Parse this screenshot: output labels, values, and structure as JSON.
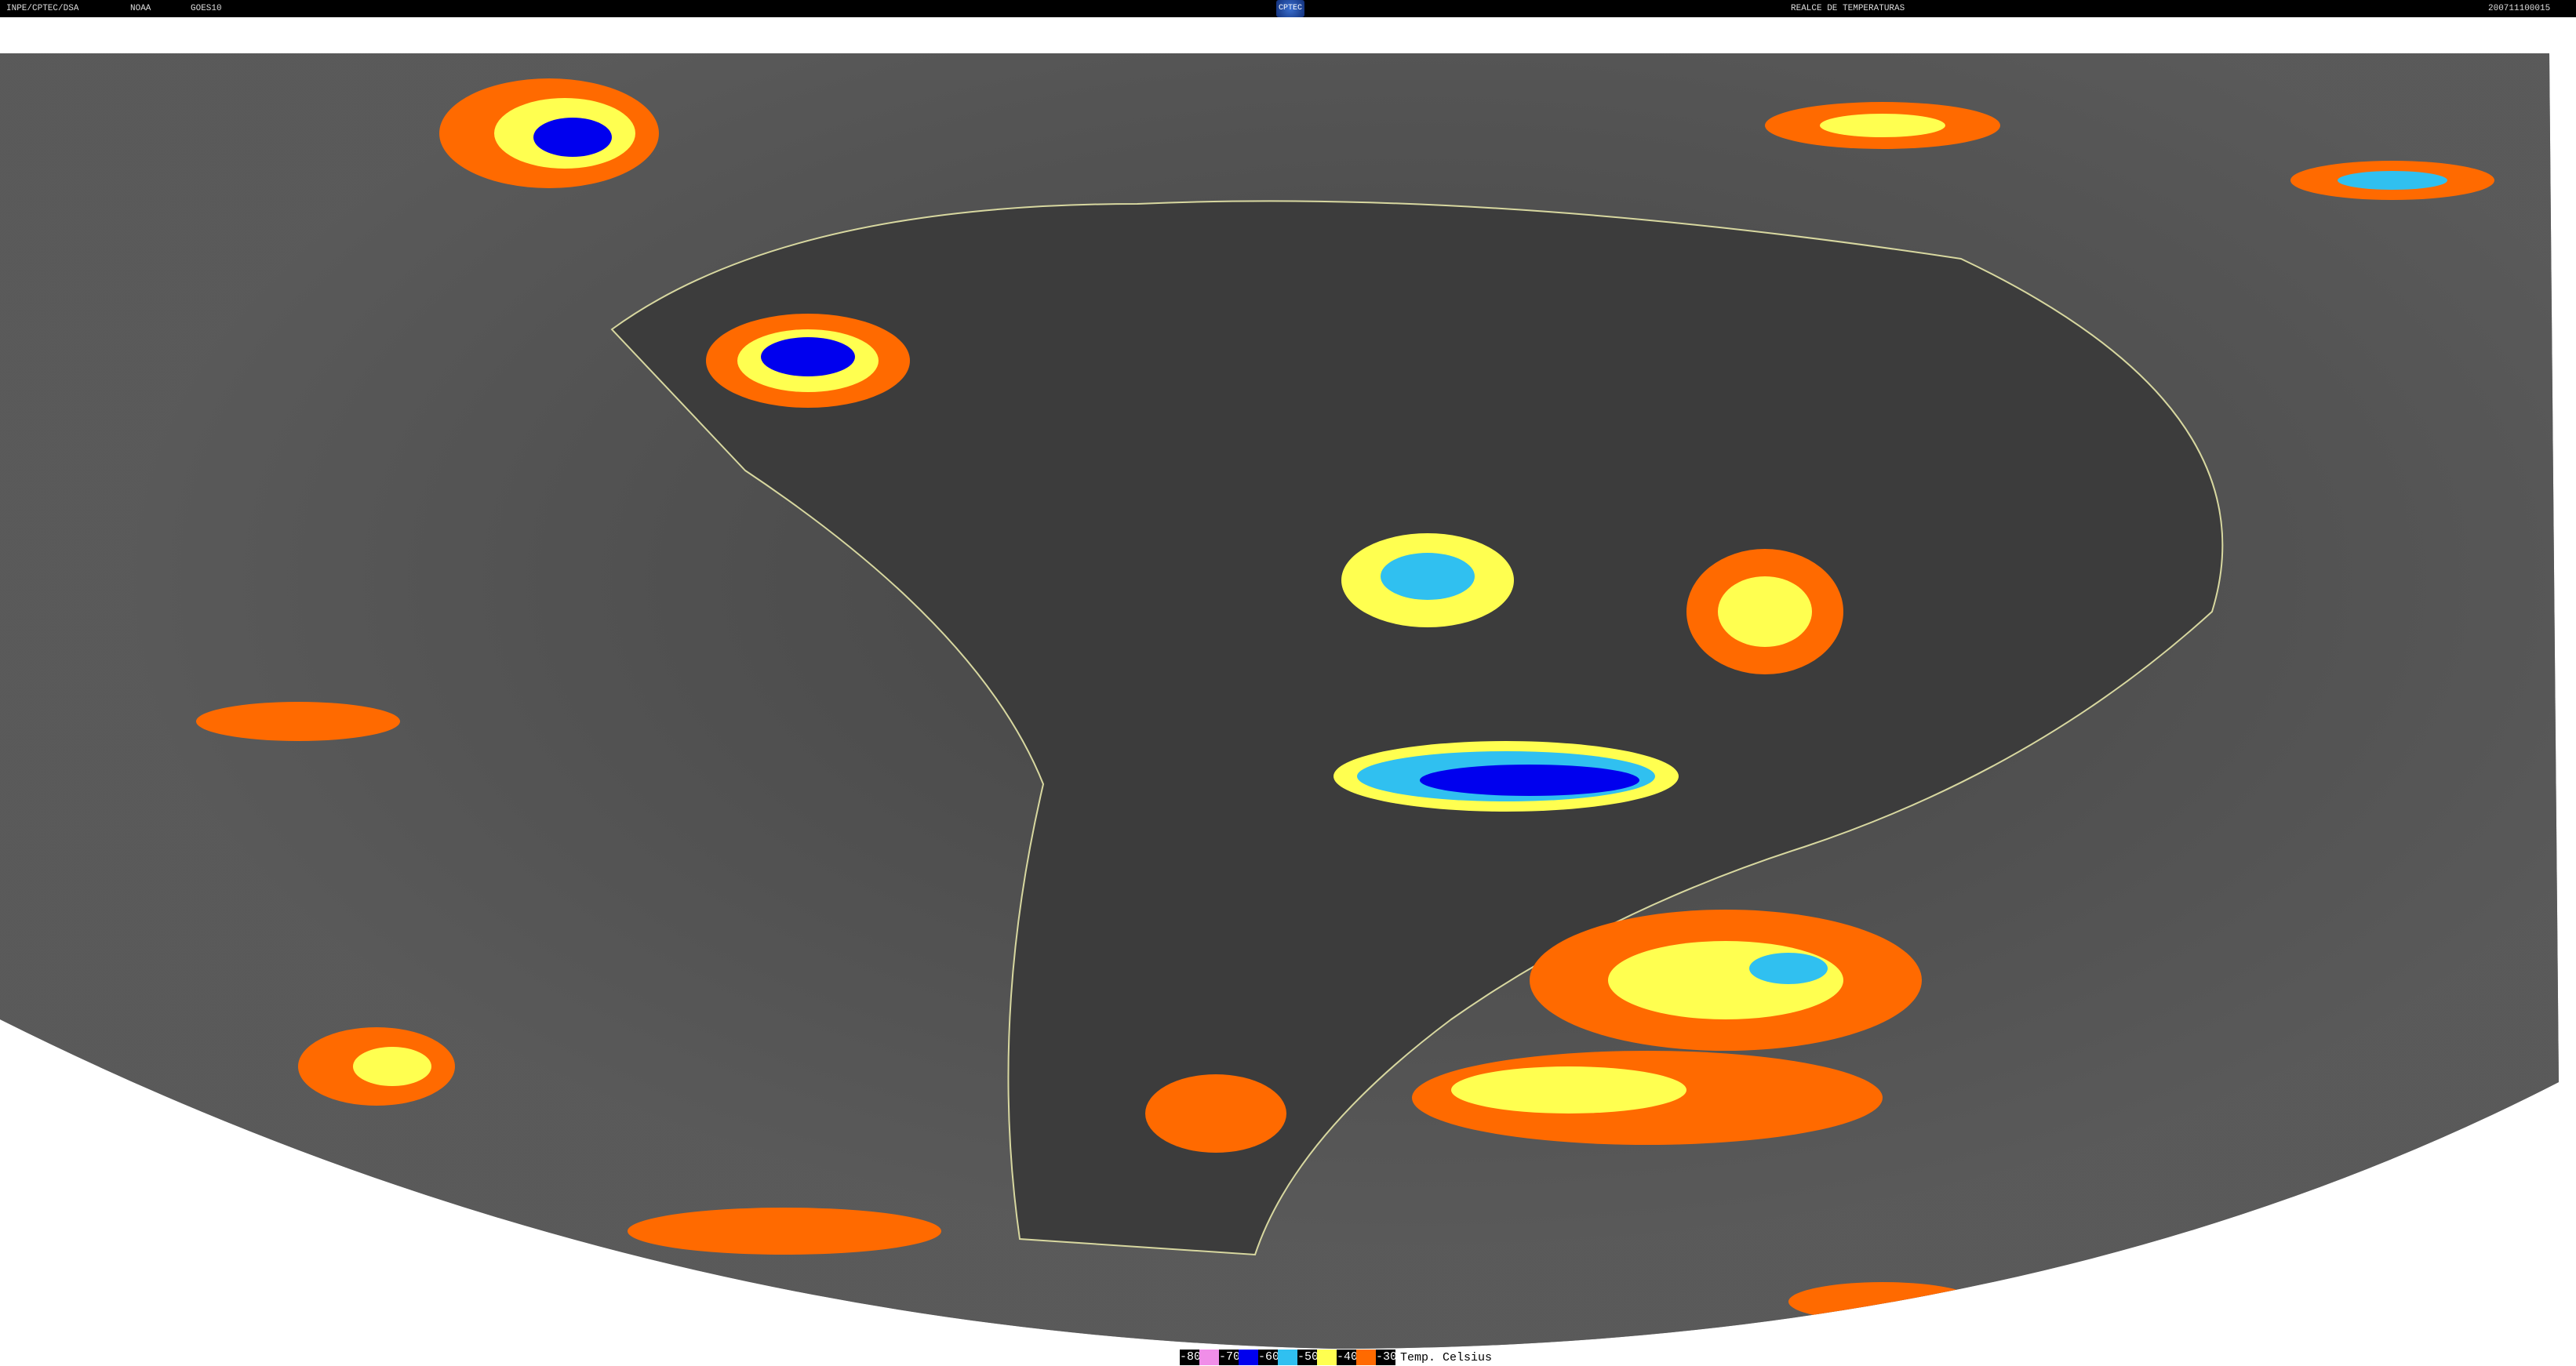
{
  "header": {
    "source": "INPE/CPTEC/DSA",
    "agency": "NOAA",
    "satellite": "GOES10",
    "logo": "CPTEC",
    "product": "REALCE DE TEMPERATURAS",
    "timestamp": "200711100015"
  },
  "legend": {
    "items": [
      {
        "label": "-80",
        "color": "#f08ee8"
      },
      {
        "label": "-70",
        "color": "#0000ee"
      },
      {
        "label": "-60",
        "color": "#30c0f0"
      },
      {
        "label": "-50",
        "color": "#ffff50"
      },
      {
        "label": "-40",
        "color": "#ff6a00"
      },
      {
        "label": "-30",
        "color": ""
      }
    ],
    "unit": "Temp. Celsius"
  }
}
